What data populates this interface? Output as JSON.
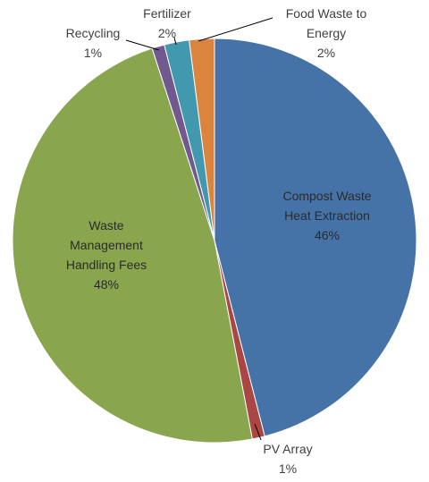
{
  "chart_data": {
    "type": "pie",
    "slices": [
      {
        "name": "Compost Waste Heat Extraction",
        "lines": [
          "Compost Waste",
          "Heat Extraction"
        ],
        "value": 46,
        "pct_label": "46%",
        "color": "#4572A7"
      },
      {
        "name": "PV Array",
        "lines": [
          "PV Array"
        ],
        "value": 1,
        "pct_label": "1%",
        "color": "#AA4643"
      },
      {
        "name": "Waste Management Handling Fees",
        "lines": [
          "Waste",
          "Management",
          "Handling Fees"
        ],
        "value": 48,
        "pct_label": "48%",
        "color": "#89A54E"
      },
      {
        "name": "Recycling",
        "lines": [
          "Recycling"
        ],
        "value": 1,
        "pct_label": "1%",
        "color": "#71588F"
      },
      {
        "name": "Fertilizer",
        "lines": [
          "Fertilizer"
        ],
        "value": 2,
        "pct_label": "2%",
        "color": "#4198AF"
      },
      {
        "name": "Food Waste to Energy",
        "lines": [
          "Food Waste to",
          "Energy"
        ],
        "value": 2,
        "pct_label": "2%",
        "color": "#DB843D"
      }
    ],
    "legend": "none"
  }
}
